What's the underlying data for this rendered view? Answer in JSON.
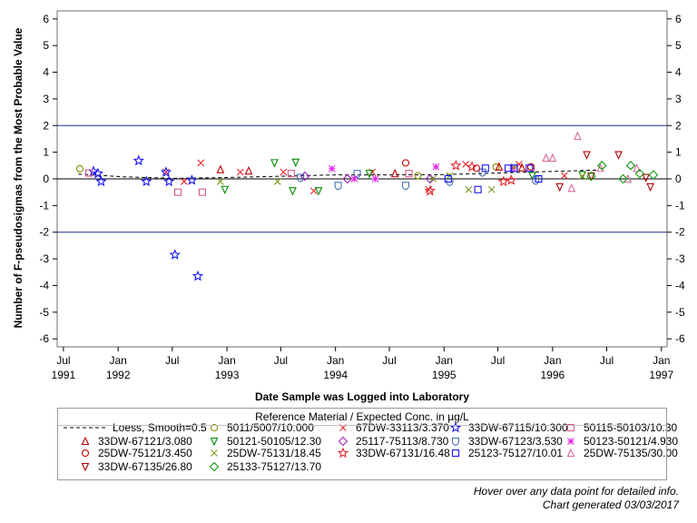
{
  "chart_data": {
    "type": "scatter",
    "xlabel": "Date Sample was Logged into Laboratory",
    "ylabel": "Number of F-pseudosigmas from the Most Probable Value",
    "ylim": [
      -6.3,
      6.3
    ],
    "xlim": [
      "1991-06-10",
      "1997-01-20"
    ],
    "yticks": [
      -6,
      -5,
      -4,
      -3,
      -2,
      -1,
      0,
      1,
      2,
      3,
      4,
      5,
      6
    ],
    "xticks": [
      {
        "date": "1991-07-01",
        "labels": [
          "Jul",
          "1991"
        ]
      },
      {
        "date": "1992-01-01",
        "labels": [
          "Jan",
          "1992"
        ]
      },
      {
        "date": "1992-07-01",
        "labels": [
          "Jul",
          ""
        ]
      },
      {
        "date": "1993-01-01",
        "labels": [
          "Jan",
          "1993"
        ]
      },
      {
        "date": "1993-07-01",
        "labels": [
          "Jul",
          ""
        ]
      },
      {
        "date": "1994-01-01",
        "labels": [
          "Jan",
          "1994"
        ]
      },
      {
        "date": "1994-07-01",
        "labels": [
          "Jul",
          ""
        ]
      },
      {
        "date": "1995-01-01",
        "labels": [
          "Jan",
          "1995"
        ]
      },
      {
        "date": "1995-07-01",
        "labels": [
          "Jul",
          ""
        ]
      },
      {
        "date": "1996-01-01",
        "labels": [
          "Jan",
          "1996"
        ]
      },
      {
        "date": "1996-07-01",
        "labels": [
          "Jul",
          ""
        ]
      },
      {
        "date": "1997-01-01",
        "labels": [
          "Jan",
          "1997"
        ]
      }
    ],
    "reference_lines": [
      2,
      0,
      -2
    ],
    "grid": false,
    "legend_title": "Reference Material / Expected Conc. in µg/L",
    "legend_position": "bottom",
    "loess": {
      "name": "Loess, Smooth=0.5",
      "points": [
        [
          "1991-08-20",
          0.18
        ],
        [
          "1992-01-15",
          0.08
        ],
        [
          "1992-07-01",
          0.02
        ],
        [
          "1993-01-01",
          0.05
        ],
        [
          "1993-07-01",
          0.1
        ],
        [
          "1994-01-01",
          0.15
        ],
        [
          "1994-07-01",
          0.15
        ],
        [
          "1995-01-01",
          0.16
        ],
        [
          "1995-07-01",
          0.22
        ],
        [
          "1996-01-01",
          0.28
        ],
        [
          "1996-06-01",
          0.33
        ]
      ]
    },
    "series": [
      {
        "name": "5011/5007/10.000",
        "marker": "circle",
        "color": "#8b8b00",
        "points": [
          [
            "1991-08-25",
            0.38
          ],
          [
            "1994-10-05",
            0.12
          ],
          [
            "1995-06-25",
            0.45
          ]
        ]
      },
      {
        "name": "67DW-33113/3.370",
        "marker": "x",
        "color": "#e8232a",
        "points": [
          [
            "1992-06-10",
            0.25
          ],
          [
            "1992-08-10",
            -0.1
          ],
          [
            "1992-10-05",
            0.6
          ],
          [
            "1993-02-15",
            0.25
          ],
          [
            "1993-07-10",
            0.25
          ],
          [
            "1993-10-20",
            -0.45
          ],
          [
            "1994-05-05",
            0.25
          ],
          [
            "1994-11-10",
            -0.4
          ],
          [
            "1995-03-15",
            0.55
          ],
          [
            "1995-09-10",
            0.55
          ],
          [
            "1996-02-10",
            0.12
          ]
        ]
      },
      {
        "name": "33DW-67115/10.300",
        "marker": "star",
        "color": "#1616ff",
        "points": [
          [
            "1991-10-10",
            0.28
          ],
          [
            "1991-10-25",
            0.2
          ],
          [
            "1991-11-05",
            -0.1
          ],
          [
            "1992-03-10",
            0.68
          ],
          [
            "1992-04-05",
            -0.1
          ],
          [
            "1992-06-10",
            0.25
          ],
          [
            "1992-06-20",
            -0.1
          ],
          [
            "1992-07-10",
            -2.85
          ],
          [
            "1992-09-05",
            -0.05
          ],
          [
            "1992-09-25",
            -3.65
          ]
        ]
      },
      {
        "name": "50115-50103/10.30",
        "marker": "square",
        "color": "#d85a8a",
        "points": [
          [
            "1991-09-25",
            0.22
          ],
          [
            "1992-07-20",
            -0.5
          ],
          [
            "1992-10-10",
            -0.5
          ],
          [
            "1993-08-05",
            0.2
          ],
          [
            "1994-09-05",
            0.2
          ],
          [
            "1995-10-20",
            0.4
          ]
        ]
      },
      {
        "name": "33DW-67121/3.080",
        "marker": "triangle",
        "color": "#c00000",
        "points": [
          [
            "1992-12-10",
            0.35
          ],
          [
            "1993-03-15",
            0.3
          ],
          [
            "1994-07-20",
            0.2
          ],
          [
            "1995-07-05",
            0.45
          ],
          [
            "1995-09-20",
            0.42
          ]
        ]
      },
      {
        "name": "50121-50105/12.30",
        "marker": "triangle-down",
        "color": "#008c00",
        "points": [
          [
            "1992-12-25",
            -0.4
          ],
          [
            "1993-06-10",
            0.6
          ],
          [
            "1993-08-20",
            0.62
          ],
          [
            "1993-08-10",
            -0.45
          ],
          [
            "1993-11-05",
            -0.45
          ],
          [
            "1994-04-25",
            0.2
          ],
          [
            "1995-10-25",
            0.12
          ],
          [
            "1996-04-10",
            0.15
          ]
        ]
      },
      {
        "name": "25117-75113/8.730",
        "marker": "diamond",
        "color": "#a020c0",
        "points": [
          [
            "1993-09-20",
            0.1
          ],
          [
            "1994-02-10",
            0.0
          ],
          [
            "1994-11-15",
            0.0
          ]
        ]
      },
      {
        "name": "33DW-67123/3.530",
        "marker": "shield",
        "color": "#4a6fb0",
        "points": [
          [
            "1993-09-05",
            0.05
          ],
          [
            "1994-01-10",
            -0.25
          ],
          [
            "1994-03-15",
            0.2
          ],
          [
            "1994-08-25",
            -0.25
          ],
          [
            "1995-01-20",
            -0.1
          ],
          [
            "1995-05-10",
            0.25
          ],
          [
            "1995-11-05",
            -0.05
          ]
        ]
      },
      {
        "name": "50123-50121/4.930",
        "marker": "asterisk",
        "color": "#e020e0",
        "points": [
          [
            "1993-12-20",
            0.38
          ],
          [
            "1994-03-05",
            0.0
          ],
          [
            "1994-05-15",
            0.0
          ],
          [
            "1994-12-05",
            0.45
          ],
          [
            "1995-08-20",
            0.4
          ]
        ]
      },
      {
        "name": "25DW-75121/3.450",
        "marker": "circle",
        "color": "#c00000",
        "points": [
          [
            "1994-08-25",
            0.6
          ],
          [
            "1995-04-20",
            0.4
          ],
          [
            "1995-10-20",
            0.45
          ]
        ]
      },
      {
        "name": "25DW-75131/18.45",
        "marker": "x",
        "color": "#7a9a20",
        "points": [
          [
            "1992-12-10",
            -0.1
          ],
          [
            "1993-06-20",
            -0.1
          ],
          [
            "1994-11-25",
            0.0
          ],
          [
            "1995-01-20",
            0.12
          ],
          [
            "1995-03-25",
            -0.4
          ],
          [
            "1995-06-10",
            -0.4
          ],
          [
            "1995-08-25",
            0.45
          ],
          [
            "1996-04-10",
            0.1
          ]
        ]
      },
      {
        "name": "33DW-67131/16.48",
        "marker": "star",
        "color": "#e8232a",
        "points": [
          [
            "1994-11-15",
            -0.45
          ],
          [
            "1995-02-10",
            0.5
          ],
          [
            "1995-04-05",
            0.45
          ],
          [
            "1995-07-20",
            -0.1
          ],
          [
            "1995-08-15",
            -0.05
          ]
        ]
      },
      {
        "name": "25123-75127/10.01",
        "marker": "square",
        "color": "#1616ff",
        "points": [
          [
            "1995-01-15",
            0.0
          ],
          [
            "1995-04-25",
            -0.4
          ],
          [
            "1995-05-20",
            0.4
          ],
          [
            "1995-08-05",
            0.4
          ],
          [
            "1995-08-25",
            0.4
          ],
          [
            "1995-10-15",
            0.4
          ],
          [
            "1995-11-15",
            0.0
          ]
        ]
      },
      {
        "name": "25DW-75135/30.00",
        "marker": "triangle",
        "color": "#d86a9a",
        "points": [
          [
            "1995-12-10",
            0.78
          ],
          [
            "1996-01-01",
            0.78
          ],
          [
            "1996-03-05",
            -0.35
          ],
          [
            "1996-03-25",
            1.6
          ],
          [
            "1996-06-10",
            0.4
          ],
          [
            "1996-09-10",
            0.0
          ],
          [
            "1996-10-10",
            0.4
          ]
        ]
      },
      {
        "name": "33DW-67135/26.80",
        "marker": "triangle-down",
        "color": "#b00000",
        "points": [
          [
            "1996-01-25",
            -0.3
          ],
          [
            "1996-04-25",
            0.9
          ],
          [
            "1996-05-10",
            0.1
          ],
          [
            "1996-08-10",
            0.9
          ],
          [
            "1996-11-10",
            0.05
          ],
          [
            "1996-11-25",
            -0.3
          ]
        ]
      },
      {
        "name": "25133-75127/13.70",
        "marker": "diamond",
        "color": "#109a10",
        "points": [
          [
            "1996-05-10",
            0.1
          ],
          [
            "1996-06-15",
            0.5
          ],
          [
            "1996-08-25",
            0.0
          ],
          [
            "1996-09-20",
            0.5
          ],
          [
            "1996-10-20",
            0.2
          ],
          [
            "1996-12-05",
            0.15
          ]
        ]
      }
    ]
  },
  "legend_rows": [
    [
      "loess",
      "5011/5007/10.000",
      "67DW-33113/3.370",
      "33DW-67115/10.300",
      "50115-50103/10.30"
    ],
    [
      "33DW-67121/3.080",
      "50121-50105/12.30",
      "25117-75113/8.730",
      "33DW-67123/3.530",
      "50123-50121/4.930"
    ],
    [
      "25DW-75121/3.450",
      "25DW-75131/18.45",
      "33DW-67131/16.48",
      "25123-75127/10.01",
      "25DW-75135/30.00"
    ],
    [
      "33DW-67135/26.80",
      "25133-75127/13.70"
    ]
  ],
  "footer": {
    "hover_note": "Hover over any data point for detailed info.",
    "generated": "Chart generated 03/03/2017"
  }
}
